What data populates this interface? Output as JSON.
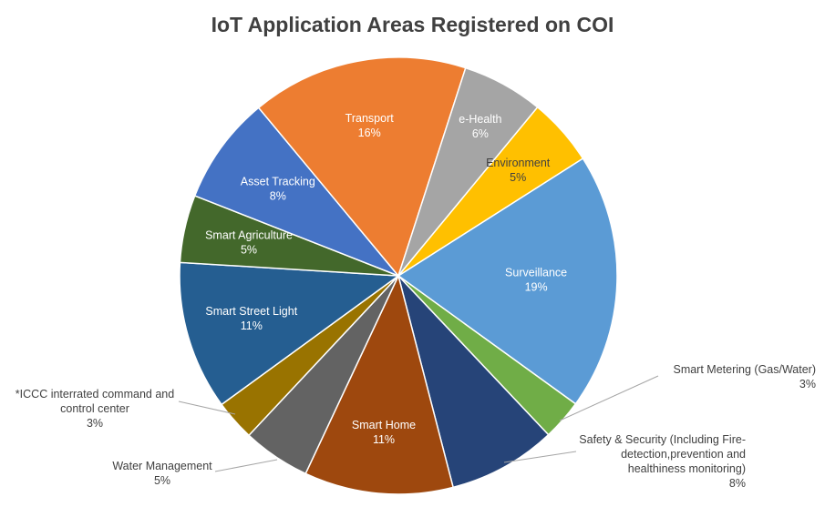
{
  "chart_data": {
    "type": "pie",
    "title": "IoT Application Areas Registered on COI",
    "slices": [
      {
        "label": [
          "Surveillance"
        ],
        "value": 19,
        "display": "19%",
        "color": "#5B9BD5",
        "text_color": "#ffffff"
      },
      {
        "label": [
          "Smart Metering (Gas/Water)"
        ],
        "value": 3,
        "display": "3%",
        "color": "#70AD47",
        "text_color": "#404040"
      },
      {
        "label": [
          "Safety & Security (Including Fire-",
          "detection,prevention and",
          "healthiness monitoring)"
        ],
        "value": 8,
        "display": "8%",
        "color": "#264478",
        "text_color": "#404040"
      },
      {
        "label": [
          "Smart Home"
        ],
        "value": 11,
        "display": "11%",
        "color": "#9E480E",
        "text_color": "#ffffff"
      },
      {
        "label": [
          "Water Management"
        ],
        "value": 5,
        "display": "5%",
        "color": "#636363",
        "text_color": "#404040"
      },
      {
        "label": [
          "*ICCC interrated command and",
          "control center"
        ],
        "value": 3,
        "display": "3%",
        "color": "#997300",
        "text_color": "#404040"
      },
      {
        "label": [
          "Smart Street Light"
        ],
        "value": 11,
        "display": "11%",
        "color": "#255E91",
        "text_color": "#ffffff"
      },
      {
        "label": [
          "Smart Agriculture"
        ],
        "value": 5,
        "display": "5%",
        "color": "#43682B",
        "text_color": "#ffffff"
      },
      {
        "label": [
          "Asset Tracking"
        ],
        "value": 8,
        "display": "8%",
        "color": "#4472C4",
        "text_color": "#ffffff"
      },
      {
        "label": [
          "Transport"
        ],
        "value": 16,
        "display": "16%",
        "color": "#ED7D31",
        "text_color": "#ffffff"
      },
      {
        "label": [
          "e-Health"
        ],
        "value": 6,
        "display": "6%",
        "color": "#A5A5A5",
        "text_color": "#ffffff"
      },
      {
        "label": [
          "Environment"
        ],
        "value": 5,
        "display": "5%",
        "color": "#FFC000",
        "text_color": "#404040"
      }
    ]
  }
}
